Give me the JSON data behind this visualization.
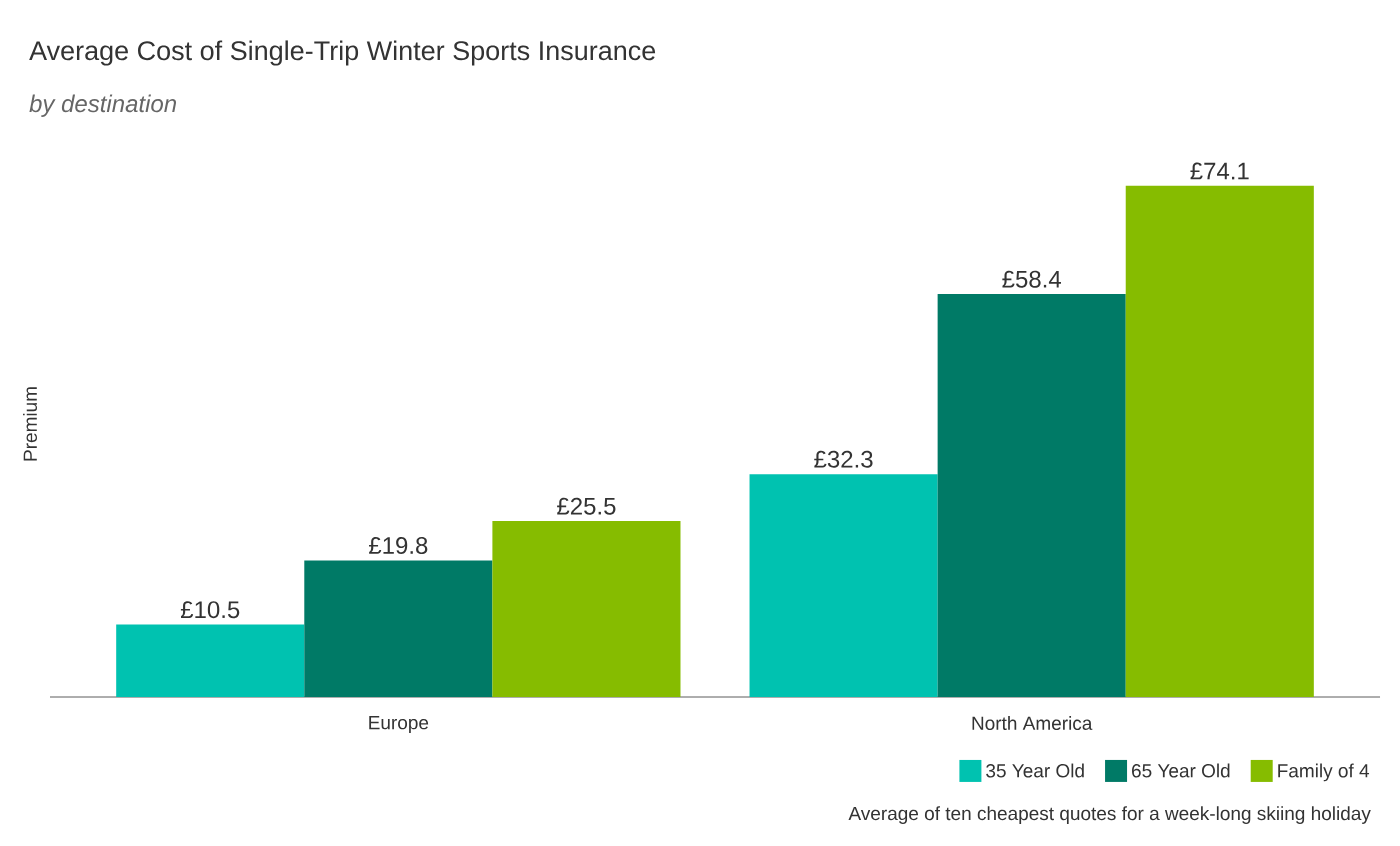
{
  "chart_data": {
    "type": "bar",
    "title": "Average Cost of Single-Trip Winter Sports Insurance",
    "subtitle": "by destination",
    "ylabel": "Premium",
    "categories": [
      "Europe",
      "North America"
    ],
    "series": [
      {
        "name": "35 Year Old",
        "color": "#00c2b0",
        "values": [
          10.5,
          32.3
        ],
        "value_labels": [
          "£10.5",
          "£32.3"
        ]
      },
      {
        "name": "65 Year Old",
        "color": "#007a66",
        "values": [
          19.8,
          58.4
        ],
        "value_labels": [
          "£19.8",
          "£58.4"
        ]
      },
      {
        "name": "Family of 4",
        "color": "#86bc00",
        "values": [
          25.5,
          74.1
        ],
        "value_labels": [
          "£25.5",
          "£74.1"
        ]
      }
    ],
    "legend": "bottom right",
    "annotations": [
      "Average of ten cheapest quotes for a week-long skiing holiday"
    ]
  }
}
